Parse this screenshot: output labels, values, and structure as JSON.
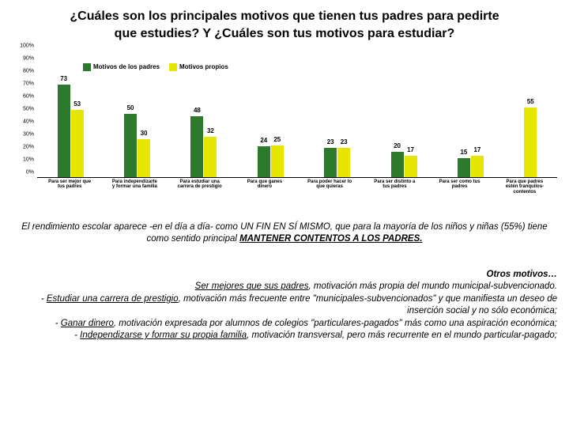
{
  "title_line1": "¿Cuáles son los principales motivos que tienen tus padres para pedirte",
  "title_line2": "que estudies? Y ¿Cuáles son tus motivos para estudiar?",
  "chart": {
    "type": "bar",
    "y_max": 100,
    "y_ticks": [
      0,
      10,
      20,
      30,
      40,
      50,
      60,
      70,
      80,
      90,
      100
    ],
    "y_tick_labels": [
      "0%",
      "10%",
      "20%",
      "30%",
      "40%",
      "50%",
      "60%",
      "70%",
      "80%",
      "90%",
      "100%"
    ],
    "legend": [
      {
        "label": "Motivos de los padres",
        "color": "#2d7a2d"
      },
      {
        "label": "Motivos propios",
        "color": "#e6e600"
      }
    ],
    "colors": {
      "padres": "#2d7a2d",
      "propios": "#e6e600"
    },
    "categories": [
      {
        "label": "Para ser mejor que tus padres",
        "v1": 73,
        "v2": 53
      },
      {
        "label": "Para independizarte y formar una familia",
        "v1": 50,
        "v2": 30
      },
      {
        "label": "Para estudiar una carrera de prestigio",
        "v1": 48,
        "v2": 32
      },
      {
        "label": "Para que ganes dinero",
        "v1": 24,
        "v2": 25
      },
      {
        "label": "Para poder hacer lo que quieras",
        "v1": 23,
        "v2": 23
      },
      {
        "label": "Para ser distinto a tus padres",
        "v1": 20,
        "v2": 17
      },
      {
        "label": "Para ser como tus padres",
        "v1": 15,
        "v2": 17
      },
      {
        "label": "Para que padres estén tranquilos-contentos",
        "v1": null,
        "v2": 55
      }
    ]
  },
  "caption_html": "El rendimiento escolar aparece -en el día a día- como UN FIN EN SÍ MISMO, que para la mayoría de los niños y niñas (55%) tiene como sentido principal",
  "caption_underlined": "MANTENER CONTENTOS A LOS PADRES.",
  "notes": {
    "heading": "Otros motivos…",
    "lines": [
      {
        "u": "Ser mejores que sus padres",
        "rest": ", motivación más propia del mundo municipal-subvencionado."
      },
      {
        "u": "Estudiar una carrera de prestigio",
        "rest": ", motivación más frecuente entre \"municipales-subvencionados\" y que manifiesta un deseo de inserción social y no sólo económica;",
        "dash": true
      },
      {
        "u": "Ganar dinero",
        "rest": ", motivación expresada por alumnos de colegios \"particulares-pagados\" más como una aspiración económica;",
        "dash": true
      },
      {
        "u": "Independizarse y formar su propia familia",
        "rest": ", motivación transversal, pero más recurrente en el mundo particular-pagado;",
        "dash": true
      }
    ]
  }
}
